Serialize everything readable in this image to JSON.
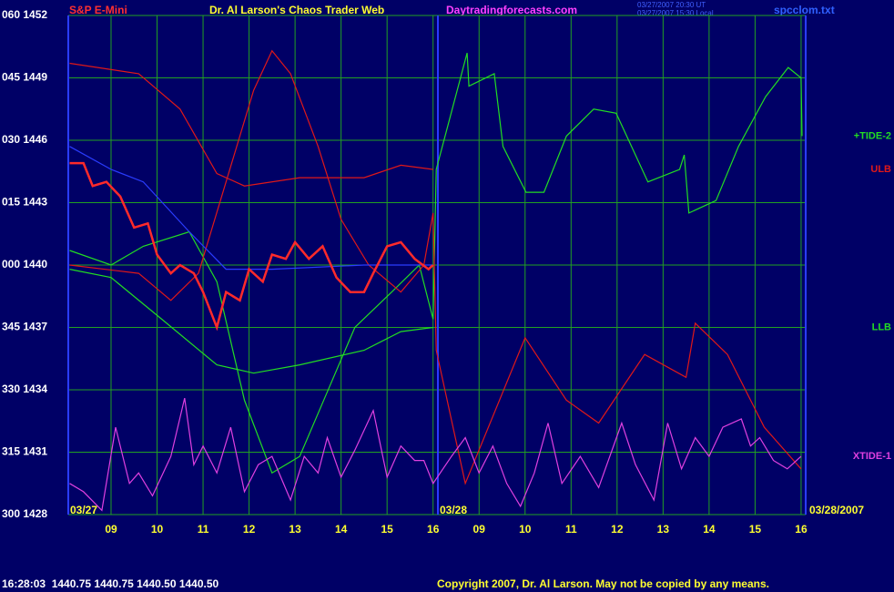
{
  "chart_data": {
    "type": "line",
    "title": "Dr. Al Larson's Chaos Trader Web",
    "instrument": "S&P E-Mini",
    "website": "Daytradingforecasts.com",
    "timestamps": [
      "03/27/2007 20:30 UT",
      "03/27/2007 15:30 Local"
    ],
    "file_name": "spcclom.txt",
    "date_labels": [
      "03/27",
      "03/28",
      "03/28/2007"
    ],
    "status": "16:28:03  1440.75 1440.75 1440.50 1440.50",
    "copyright": "Copyright 2007, Dr. Al Larson. May not be copied by any means.",
    "xlim": [
      8.07,
      24.1
    ],
    "xticks": [
      {
        "value": 9,
        "label": "09"
      },
      10,
      11,
      12,
      13,
      14,
      15,
      16,
      {
        "value": 17,
        "label": "09"
      },
      {
        "value": 18,
        "label": "10"
      },
      {
        "value": 19,
        "label": "11"
      },
      {
        "value": 20,
        "label": "12"
      },
      {
        "value": 21,
        "label": "13"
      },
      {
        "value": 22,
        "label": "14"
      },
      {
        "value": 23,
        "label": "15"
      },
      {
        "value": 24,
        "label": "16"
      }
    ],
    "ylim": [
      1428,
      1452
    ],
    "yticks": [
      {
        "value": 1428,
        "label": "300 1428"
      },
      {
        "value": 1431,
        "label": "315 1431"
      },
      {
        "value": 1434,
        "label": "330 1434"
      },
      {
        "value": 1437,
        "label": "345 1437"
      },
      {
        "value": 1440,
        "label": "000 1440"
      },
      {
        "value": 1443,
        "label": "015 1443"
      },
      {
        "value": 1446,
        "label": "030 1446"
      },
      {
        "value": 1449,
        "label": "045 1449"
      },
      {
        "value": 1452,
        "label": "060 1452"
      }
    ],
    "grid": true,
    "grid_color": "#22a022",
    "series": [
      {
        "name": "ULB",
        "color": "#e01818",
        "x": [
          8.1,
          9.6,
          10.5,
          11.3,
          11.9,
          13.1,
          14.5,
          15.3,
          16.0
        ],
        "values": [
          1449.7,
          1449.2,
          1447.5,
          1444.4,
          1443.8,
          1444.2,
          1444.2,
          1444.8,
          1444.6
        ]
      },
      {
        "name": "LLB",
        "color": "#22dd22",
        "x": [
          8.1,
          9.0,
          10.1,
          11.3,
          12.1,
          13.1,
          14.5,
          15.3,
          16.0
        ],
        "values": [
          1439.8,
          1439.4,
          1437.4,
          1435.2,
          1434.8,
          1435.2,
          1435.9,
          1436.8,
          1437.0
        ]
      },
      {
        "name": "+TIDE-2",
        "color": "#22dd22",
        "x": [
          8.1,
          9.0,
          9.7,
          10.7,
          11.3,
          11.9,
          12.5,
          13.1,
          13.7,
          14.3,
          15.1,
          15.7,
          16.0,
          16.07,
          16.74,
          16.78,
          17.33,
          17.52,
          18.02,
          18.41,
          18.9,
          19.49,
          19.98,
          20.67,
          21.36,
          21.46,
          21.56,
          22.15,
          22.64,
          23.23,
          23.72,
          24.0,
          24.02
        ],
        "values": [
          1440.7,
          1440.0,
          1440.9,
          1441.6,
          1439.2,
          1433.5,
          1430.0,
          1430.8,
          1433.9,
          1437.0,
          1438.7,
          1440.0,
          1437.4,
          1444.6,
          1450.2,
          1448.6,
          1449.2,
          1445.7,
          1443.5,
          1443.5,
          1446.2,
          1447.5,
          1447.3,
          1444.0,
          1444.6,
          1445.3,
          1442.5,
          1443.1,
          1445.7,
          1448.1,
          1449.5,
          1449.0,
          1446.2
        ]
      },
      {
        "color": "#e01818",
        "x": [
          8.1,
          9.6,
          10.3,
          10.9,
          11.5,
          12.1,
          12.5,
          12.9,
          13.5,
          14.0,
          14.6,
          15.3,
          15.8,
          16.0,
          16.07,
          16.7,
          18.0,
          18.9,
          19.6,
          20.6,
          21.5,
          21.7,
          22.4,
          23.2,
          24.0
        ],
        "values": [
          1440.0,
          1439.6,
          1438.3,
          1439.6,
          1444.0,
          1448.4,
          1450.3,
          1449.2,
          1445.7,
          1442.2,
          1440.0,
          1438.7,
          1440.0,
          1442.5,
          1435.9,
          1429.5,
          1436.5,
          1433.5,
          1432.4,
          1435.7,
          1434.6,
          1437.2,
          1435.7,
          1432.2,
          1430.2
        ]
      },
      {
        "color": "#2a3cff",
        "x": [
          8.1,
          9.0,
          9.7,
          10.7,
          11.5,
          12.5,
          14.5,
          16.0
        ],
        "values": [
          1445.7,
          1444.6,
          1444.0,
          1441.6,
          1439.8,
          1439.8,
          1440.0,
          1440.0
        ]
      },
      {
        "name": "XTIDE-1",
        "color": "#e040e0",
        "x": [
          8.1,
          8.4,
          8.8,
          9.1,
          9.4,
          9.6,
          9.9,
          10.3,
          10.6,
          10.8,
          11.0,
          11.3,
          11.6,
          11.9,
          12.2,
          12.5,
          12.9,
          13.2,
          13.5,
          13.7,
          14.0,
          14.3,
          14.7,
          15.0,
          15.3,
          15.6,
          15.8,
          16.0,
          16.4,
          16.7,
          17.0,
          17.3,
          17.6,
          17.9,
          18.2,
          18.5,
          18.8,
          19.2,
          19.6,
          20.1,
          20.4,
          20.8,
          21.1,
          21.4,
          21.7,
          22.0,
          22.3,
          22.7,
          22.9,
          23.1,
          23.4,
          23.7,
          24.0
        ],
        "values": [
          1429.5,
          1429.1,
          1428.2,
          1432.2,
          1429.5,
          1430.0,
          1428.9,
          1430.8,
          1433.6,
          1430.4,
          1431.3,
          1430.0,
          1432.2,
          1429.1,
          1430.4,
          1430.8,
          1428.7,
          1430.8,
          1430.0,
          1431.7,
          1429.8,
          1431.1,
          1433.0,
          1429.8,
          1431.3,
          1430.6,
          1430.6,
          1429.5,
          1430.8,
          1431.7,
          1430.0,
          1431.3,
          1429.5,
          1428.4,
          1430.0,
          1432.4,
          1429.5,
          1430.8,
          1429.3,
          1432.4,
          1430.4,
          1428.7,
          1432.4,
          1430.2,
          1431.7,
          1430.8,
          1432.2,
          1432.6,
          1431.3,
          1431.7,
          1430.6,
          1430.2,
          1430.8
        ]
      },
      {
        "color": "#ff2a2a",
        "x": [
          8.1,
          8.4,
          8.6,
          8.9,
          9.2,
          9.5,
          9.8,
          10.0,
          10.3,
          10.5,
          10.8,
          11.0,
          11.3,
          11.5,
          11.8,
          12.0,
          12.3,
          12.5,
          12.8,
          13.0,
          13.3,
          13.6,
          13.9,
          14.2,
          14.5,
          14.7,
          15.0,
          15.3,
          15.6,
          15.9,
          16.0
        ],
        "values": [
          1444.9,
          1444.9,
          1443.8,
          1444.0,
          1443.3,
          1441.8,
          1442.0,
          1440.5,
          1439.6,
          1440.0,
          1439.6,
          1438.7,
          1437.0,
          1438.7,
          1438.3,
          1439.8,
          1439.2,
          1440.5,
          1440.3,
          1441.1,
          1440.3,
          1440.9,
          1439.4,
          1438.7,
          1438.7,
          1439.6,
          1440.9,
          1441.1,
          1440.3,
          1439.8,
          1440.0
        ]
      }
    ]
  }
}
